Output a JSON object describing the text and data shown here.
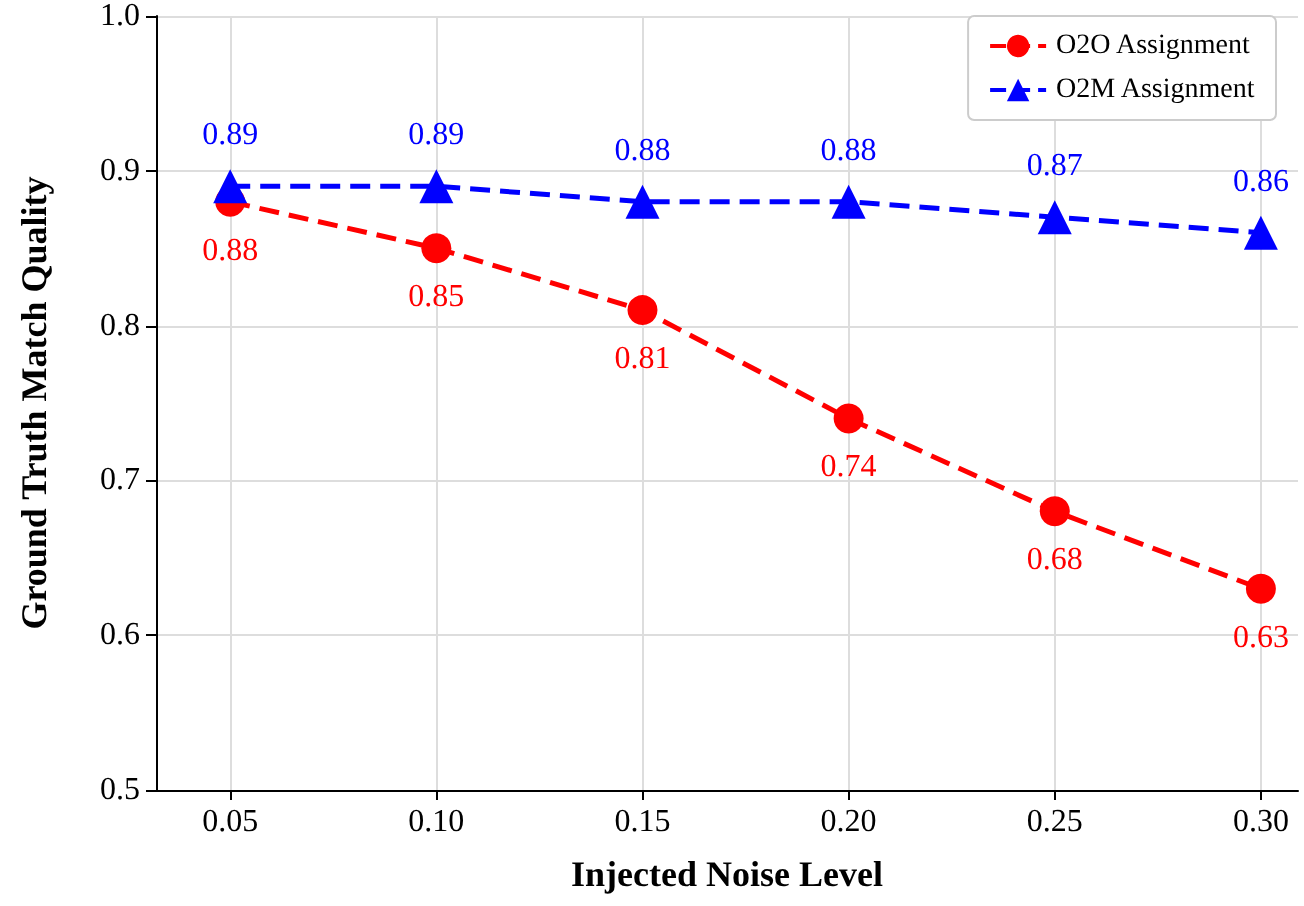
{
  "chart_data": {
    "type": "line",
    "xlabel": "Injected Noise Level",
    "ylabel": "Ground Truth Match Quality",
    "x": [
      0.05,
      0.1,
      0.15,
      0.2,
      0.25,
      0.3
    ],
    "series": [
      {
        "name": "O2O Assignment",
        "color": "#ff0000",
        "marker": "circle",
        "values": [
          0.88,
          0.85,
          0.81,
          0.74,
          0.68,
          0.63
        ]
      },
      {
        "name": "O2M Assignment",
        "color": "#0000ff",
        "marker": "triangle",
        "values": [
          0.89,
          0.89,
          0.88,
          0.88,
          0.87,
          0.86
        ]
      }
    ],
    "xlim": [
      0.032,
      0.309
    ],
    "xticks": [
      {
        "value": 0.05,
        "label": "0.05"
      },
      {
        "value": 0.1,
        "label": "0.10"
      },
      {
        "value": 0.15,
        "label": "0.15"
      },
      {
        "value": 0.2,
        "label": "0.20"
      },
      {
        "value": 0.25,
        "label": "0.25"
      },
      {
        "value": 0.3,
        "label": "0.30"
      }
    ],
    "ylim": [
      0.5,
      1.0
    ],
    "yticks": [
      0.5,
      0.6,
      0.7,
      0.8,
      0.9,
      {
        "value": 1.0,
        "label": "1.0"
      }
    ],
    "grid": true,
    "legend": "top right",
    "line_style": "dashed",
    "data_labels": true
  }
}
